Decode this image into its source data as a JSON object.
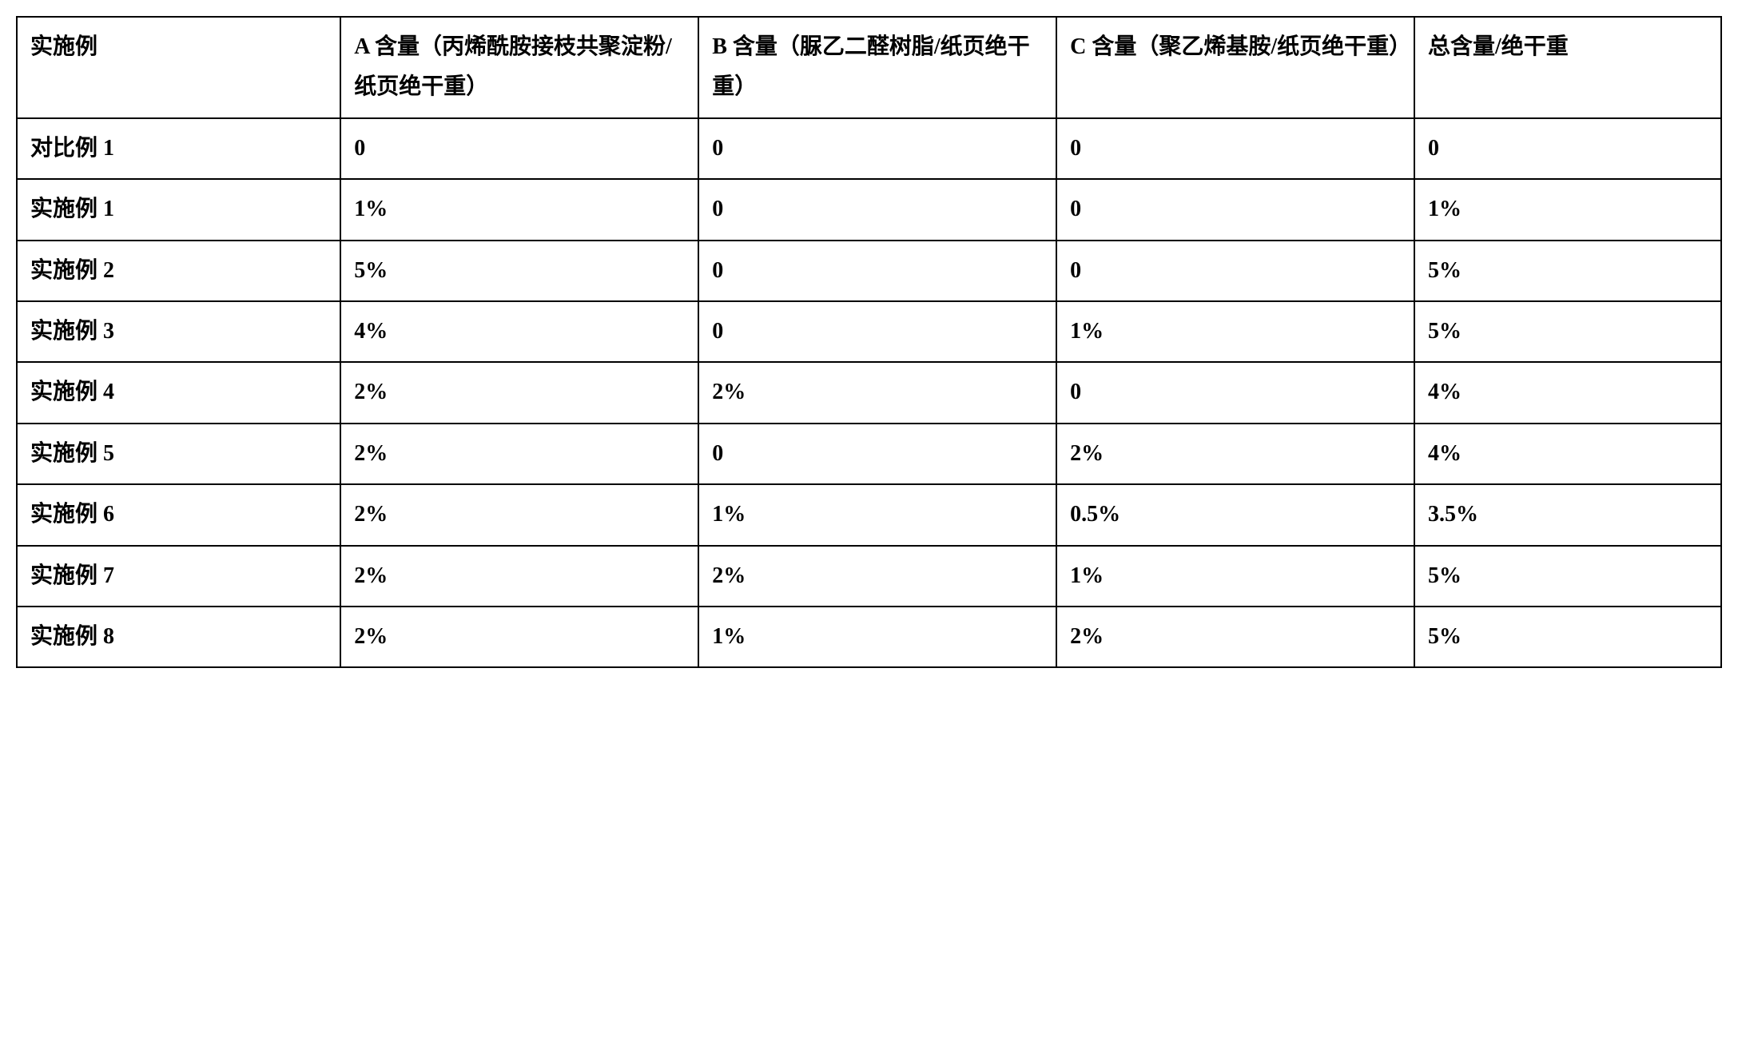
{
  "table": {
    "type": "table",
    "background_color": "#ffffff",
    "border_color": "#000000",
    "border_width": 2,
    "font_family": "SimSun",
    "font_size": 28,
    "font_weight": "bold",
    "text_color": "#000000",
    "cell_padding": 12,
    "columns": [
      {
        "header": "实施例",
        "width": "19%"
      },
      {
        "header": "A 含量（丙烯酰胺接枝共聚淀粉/纸页绝干重）",
        "width": "21%"
      },
      {
        "header": "B 含量（脲乙二醛树脂/纸页绝干重）",
        "width": "21%"
      },
      {
        "header": "C 含量（聚乙烯基胺/纸页绝干重）",
        "width": "21%"
      },
      {
        "header": "总含量/绝干重",
        "width": "18%"
      }
    ],
    "rows": [
      {
        "label": "对比例 1",
        "a": "0",
        "b": "0",
        "c": "0",
        "total": "0"
      },
      {
        "label": "实施例 1",
        "a": "1%",
        "b": "0",
        "c": "0",
        "total": "1%"
      },
      {
        "label": "实施例 2",
        "a": "5%",
        "b": "0",
        "c": "0",
        "total": "5%"
      },
      {
        "label": "实施例 3",
        "a": "4%",
        "b": "0",
        "c": "1%",
        "total": "5%"
      },
      {
        "label": "实施例 4",
        "a": "2%",
        "b": "2%",
        "c": "0",
        "total": "4%"
      },
      {
        "label": "实施例 5",
        "a": "2%",
        "b": "0",
        "c": "2%",
        "total": "4%"
      },
      {
        "label": "实施例 6",
        "a": "2%",
        "b": "1%",
        "c": "0.5%",
        "total": "3.5%"
      },
      {
        "label": "实施例 7",
        "a": "2%",
        "b": "2%",
        "c": "1%",
        "total": "5%"
      },
      {
        "label": "实施例 8",
        "a": "2%",
        "b": "1%",
        "c": "2%",
        "total": "5%"
      }
    ]
  }
}
